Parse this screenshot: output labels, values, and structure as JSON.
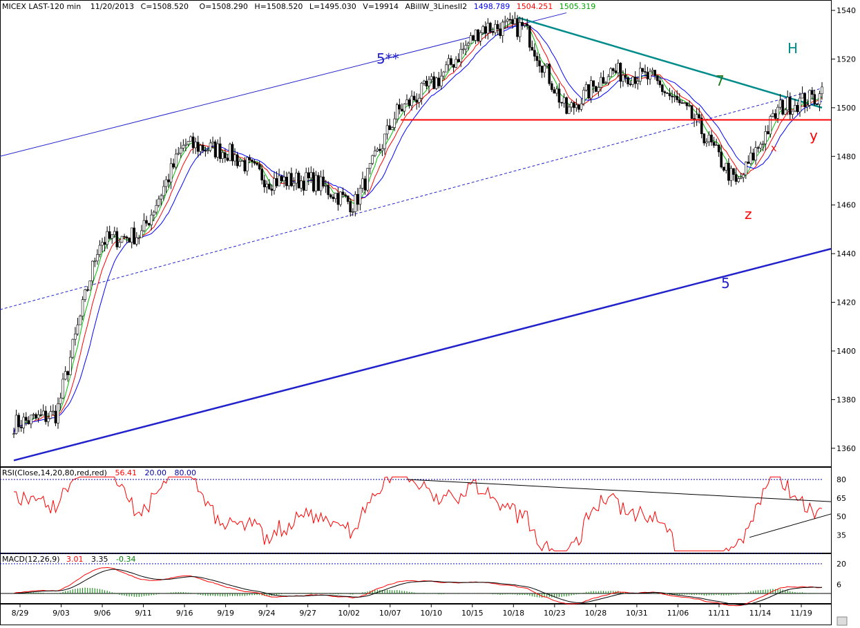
{
  "header": {
    "instrument": "MICEX LAST-120 min",
    "date": "11/20/2013",
    "close": "C=1508.520",
    "open": "O=1508.290",
    "high": "H=1508.520",
    "low": "L=1495.030",
    "volume": "V=19914",
    "indicator_name": "ABillW_3LinesII2",
    "ind_blue": "1498.789",
    "ind_red": "1504.251",
    "ind_green": "1505.319"
  },
  "rsi_header": {
    "label": "RSI(Close,14,20,80,red,red)",
    "value": "56.41",
    "low": "20.00",
    "high": "80.00"
  },
  "macd_header": {
    "label": "MACD(12,26,9)",
    "macd": "3.01",
    "signal": "3.35",
    "hist": "-0.34"
  },
  "annotations": {
    "a5stars": "5**",
    "a7": "7",
    "aH": "H",
    "ay": "y",
    "ax": "x",
    "az": "z",
    "a5": "5"
  },
  "colors": {
    "red": "#ff0000",
    "green": "#00c000",
    "blue": "#0000ff",
    "teal": "#008b8b",
    "navy": "#2222cc",
    "grid": "#0000aa"
  },
  "chart_data": {
    "type": "candlestick",
    "title": "MICEX LAST-120 min",
    "price_axis": {
      "ticks": [
        1360,
        1380,
        1400,
        1420,
        1440,
        1460,
        1480,
        1500,
        1520,
        1540
      ],
      "range": [
        1352,
        1542
      ]
    },
    "date_ticks": [
      "8/29",
      "9/03",
      "9/06",
      "9/11",
      "9/16",
      "9/19",
      "9/24",
      "9/27",
      "10/02",
      "10/07",
      "10/10",
      "10/15",
      "10/18",
      "10/23",
      "10/28",
      "10/31",
      "11/06",
      "11/11",
      "11/14",
      "11/19"
    ],
    "close_path_waypoints": [
      {
        "date": "8/29",
        "close": 1370
      },
      {
        "date": "9/03",
        "close": 1374
      },
      {
        "date": "9/06",
        "close": 1445
      },
      {
        "date": "9/11",
        "close": 1448
      },
      {
        "date": "9/16",
        "close": 1485
      },
      {
        "date": "9/19",
        "close": 1482
      },
      {
        "date": "9/24",
        "close": 1470
      },
      {
        "date": "9/27",
        "close": 1470
      },
      {
        "date": "10/02",
        "close": 1460
      },
      {
        "date": "10/07",
        "close": 1498
      },
      {
        "date": "10/10",
        "close": 1512
      },
      {
        "date": "10/15",
        "close": 1533
      },
      {
        "date": "10/18",
        "close": 1533
      },
      {
        "date": "10/23",
        "close": 1498
      },
      {
        "date": "10/28",
        "close": 1515
      },
      {
        "date": "10/31",
        "close": 1512
      },
      {
        "date": "11/06",
        "close": 1495
      },
      {
        "date": "11/11",
        "close": 1468
      },
      {
        "date": "11/14",
        "close": 1500
      },
      {
        "date": "11/19",
        "close": 1505
      }
    ],
    "last_bar": {
      "open": 1508.29,
      "high": 1508.52,
      "low": 1495.03,
      "close": 1508.52,
      "volume": 19914
    },
    "moving_averages": [
      {
        "name": "ABillW_3LinesII2 blue",
        "value": 1498.789
      },
      {
        "name": "ABillW_3LinesII2 red",
        "value": 1504.251
      },
      {
        "name": "ABillW_3LinesII2 green",
        "value": 1505.319
      }
    ],
    "horizontal_level": 1495,
    "rsi": {
      "period": 14,
      "levels": [
        20,
        80
      ],
      "last": 56.41,
      "axis_ticks": [
        35,
        50,
        65,
        80
      ]
    },
    "macd": {
      "fast": 12,
      "slow": 26,
      "signal": 9,
      "macd": 3.01,
      "signal_value": 3.35,
      "histogram": -0.34,
      "axis_ticks": [
        6,
        20
      ]
    }
  }
}
